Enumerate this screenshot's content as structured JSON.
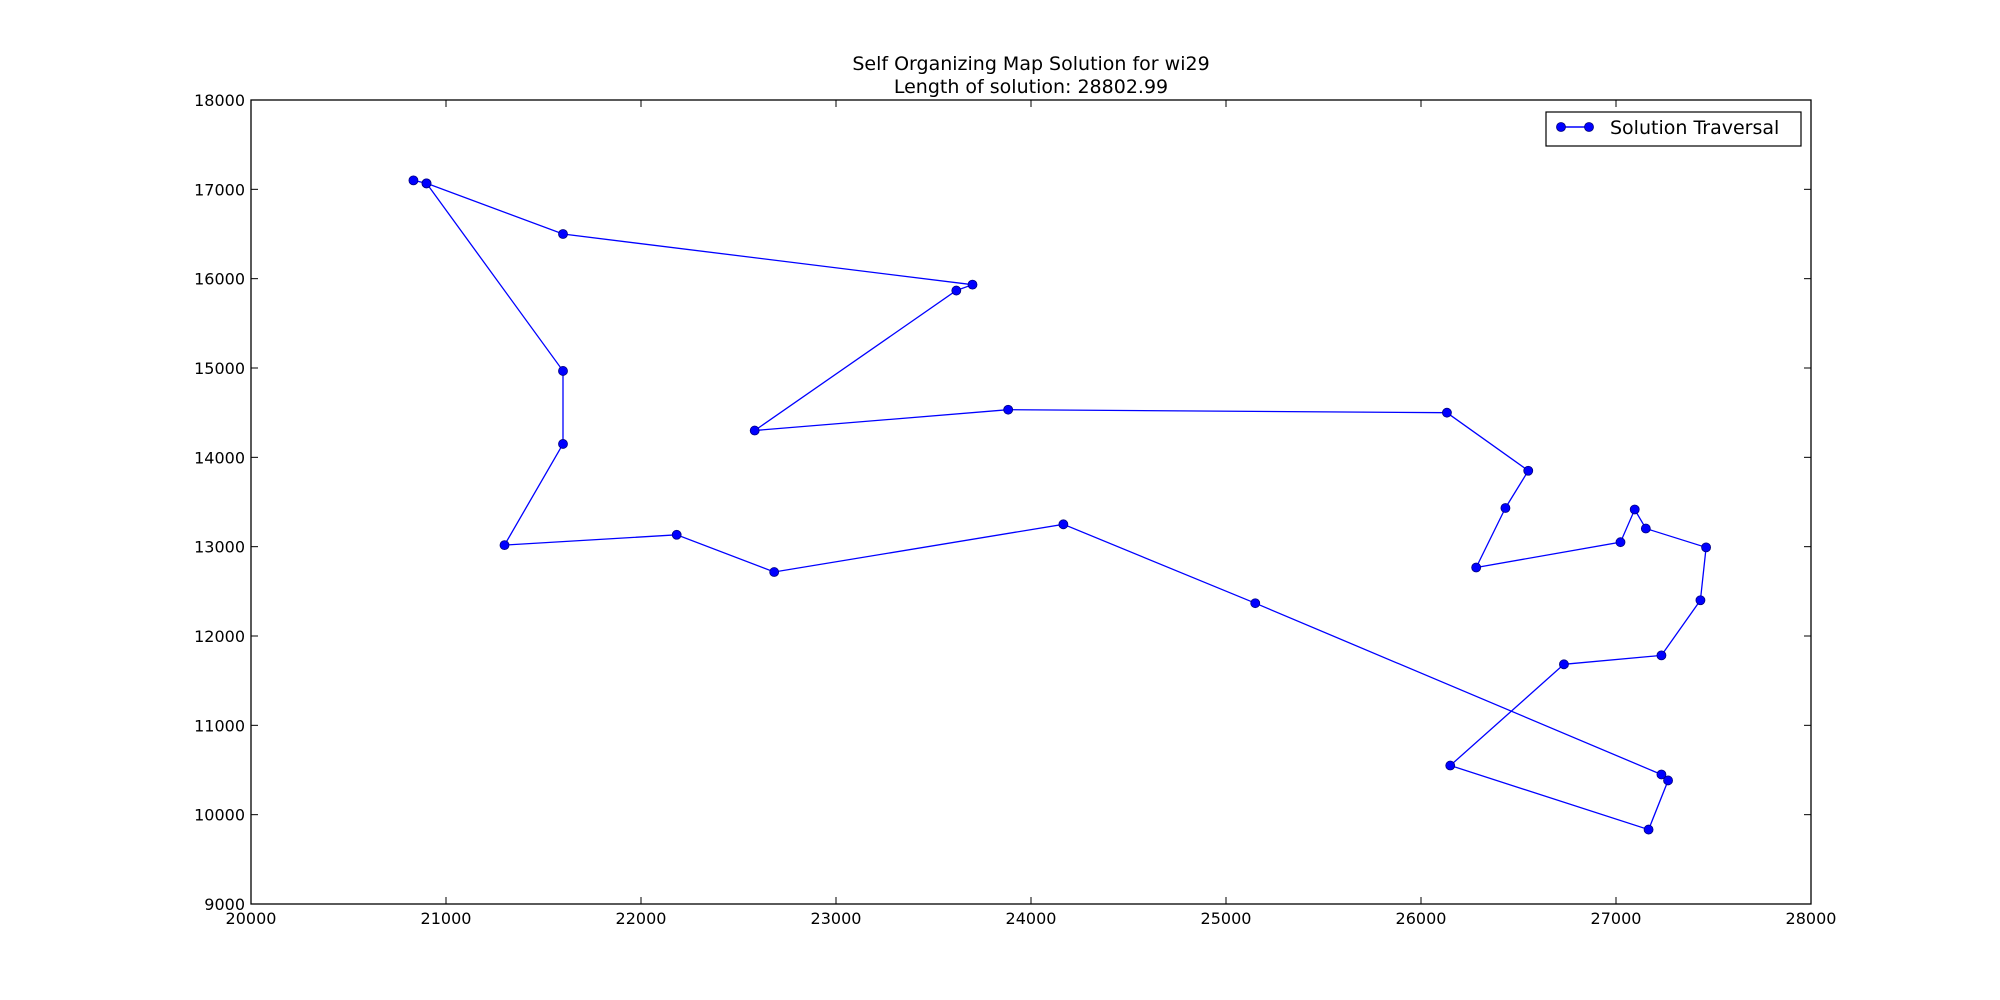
{
  "chart_data": {
    "type": "line",
    "title": "Self Organizing Map Solution for wi29",
    "subtitle": "Length of solution: 28802.99",
    "xlabel": "",
    "ylabel": "",
    "xlim": [
      20000,
      28000
    ],
    "ylim": [
      9000,
      18000
    ],
    "xticks": [
      20000,
      21000,
      22000,
      23000,
      24000,
      25000,
      26000,
      27000,
      28000
    ],
    "yticks": [
      9000,
      10000,
      11000,
      12000,
      13000,
      14000,
      15000,
      16000,
      17000,
      18000
    ],
    "grid": false,
    "legend": {
      "position": "top-right",
      "entries": [
        "Solution Traversal"
      ]
    },
    "colors": {
      "series": "#0000ff",
      "marker_edge": "#000080",
      "axes": "#000000"
    },
    "series": [
      {
        "name": "Solution Traversal",
        "marker": "circle",
        "points": [
          [
            20833,
            17100
          ],
          [
            20900,
            17067
          ],
          [
            21600,
            16500
          ],
          [
            23700,
            15933
          ],
          [
            23617,
            15867
          ],
          [
            22583,
            14300
          ],
          [
            23883,
            14533
          ],
          [
            26133,
            14500
          ],
          [
            26550,
            13850
          ],
          [
            26433,
            13433
          ],
          [
            26283,
            12767
          ],
          [
            27023,
            13050
          ],
          [
            27096,
            13416
          ],
          [
            27153,
            13203
          ],
          [
            27462,
            12992
          ],
          [
            27433,
            12400
          ],
          [
            27233,
            11783
          ],
          [
            26733,
            11683
          ],
          [
            26150,
            10550
          ],
          [
            27167,
            9833
          ],
          [
            27267,
            10383
          ],
          [
            27233,
            10450
          ],
          [
            25150,
            12367
          ],
          [
            24166,
            13250
          ],
          [
            22683,
            12716
          ],
          [
            22183,
            13133
          ],
          [
            21300,
            13017
          ],
          [
            21600,
            14150
          ],
          [
            21600,
            14967
          ],
          [
            20900,
            17067
          ]
        ]
      }
    ]
  }
}
